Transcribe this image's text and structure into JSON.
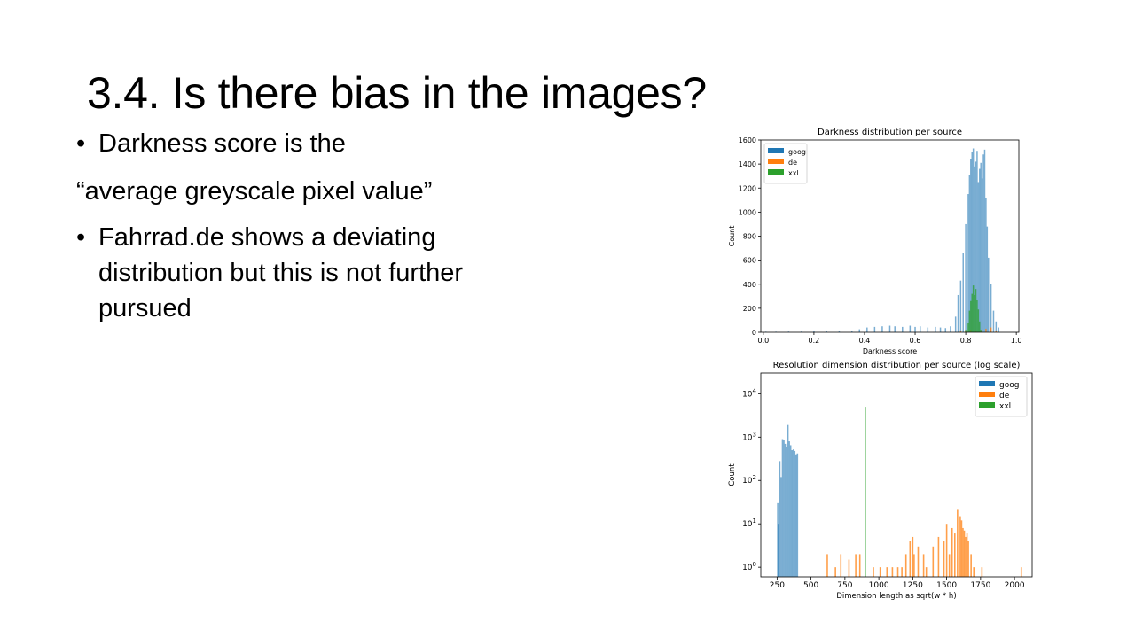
{
  "slide": {
    "title": "3.4. Is there bias in the images?",
    "bullet1": "Darkness score is the",
    "line2": "“average greyscale pixel value”",
    "bullet2_line1": "Fahrrad.de shows a deviating",
    "bullet2_line2": "distribution  but this is not further",
    "bullet2_line3": "pursued"
  },
  "colors": {
    "goog": "#1f77b4",
    "de": "#ff7f0e",
    "xxl": "#2ca02c"
  },
  "chart_data": [
    {
      "type": "bar",
      "title": "Darkness distribution per source",
      "xlabel": "Darkness score",
      "ylabel": "Count",
      "xlim": [
        -0.01,
        1.01
      ],
      "ylim": [
        0,
        1600
      ],
      "xticks": [
        "0.0",
        "0.2",
        "0.4",
        "0.6",
        "0.8",
        "1.0"
      ],
      "yticks": [
        "0",
        "200",
        "400",
        "600",
        "800",
        "1000",
        "1200",
        "1400",
        "1600"
      ],
      "legend_position": "top-left",
      "series": [
        {
          "name": "goog",
          "x": [
            0.01,
            0.05,
            0.1,
            0.15,
            0.2,
            0.25,
            0.3,
            0.35,
            0.38,
            0.41,
            0.44,
            0.47,
            0.5,
            0.52,
            0.55,
            0.58,
            0.6,
            0.62,
            0.65,
            0.68,
            0.7,
            0.72,
            0.74,
            0.76,
            0.77,
            0.78,
            0.79,
            0.8,
            0.81,
            0.815,
            0.82,
            0.825,
            0.83,
            0.835,
            0.84,
            0.845,
            0.85,
            0.855,
            0.86,
            0.865,
            0.87,
            0.875,
            0.88,
            0.885,
            0.89,
            0.9,
            0.91,
            0.92,
            0.93
          ],
          "y": [
            5,
            5,
            6,
            6,
            8,
            8,
            10,
            12,
            25,
            40,
            45,
            50,
            55,
            50,
            45,
            55,
            45,
            50,
            40,
            45,
            40,
            35,
            50,
            130,
            310,
            430,
            660,
            900,
            1150,
            1310,
            1440,
            1500,
            1530,
            1380,
            1420,
            1510,
            1250,
            1360,
            1410,
            1280,
            1480,
            1520,
            1120,
            880,
            620,
            400,
            180,
            90,
            40
          ]
        },
        {
          "name": "de",
          "x": [
            0.78,
            0.8,
            0.82,
            0.84,
            0.86,
            0.88,
            0.9,
            0.92
          ],
          "y": [
            10,
            15,
            20,
            12,
            18,
            30,
            40,
            15
          ]
        },
        {
          "name": "xxl",
          "x": [
            0.8,
            0.81,
            0.815,
            0.82,
            0.825,
            0.83,
            0.835,
            0.84,
            0.845,
            0.85,
            0.855,
            0.86
          ],
          "y": [
            20,
            80,
            180,
            260,
            320,
            390,
            310,
            360,
            270,
            190,
            90,
            20
          ]
        }
      ]
    },
    {
      "type": "bar",
      "title": "Resolution dimension distribution per source (log scale)",
      "xlabel": "Dimension length as sqrt(w * h)",
      "ylabel": "Count",
      "xlim": [
        130,
        2130
      ],
      "ylog": true,
      "ylim": [
        0.6,
        30000
      ],
      "xticks": [
        250,
        500,
        750,
        1000,
        1250,
        1500,
        1750,
        2000
      ],
      "yticks": [
        1,
        10,
        100,
        1000,
        10000
      ],
      "legend_position": "top-right",
      "series": [
        {
          "name": "goog",
          "x": [
            255,
            260,
            270,
            280,
            290,
            300,
            310,
            320,
            330,
            340,
            350,
            360,
            370,
            380,
            390,
            400
          ],
          "y": [
            30,
            10,
            280,
            120,
            900,
            850,
            700,
            600,
            1900,
            800,
            650,
            500,
            520,
            480,
            400,
            420
          ]
        },
        {
          "name": "de",
          "x": [
            620,
            680,
            720,
            780,
            830,
            860,
            960,
            1010,
            1060,
            1100,
            1140,
            1170,
            1200,
            1230,
            1250,
            1260,
            1290,
            1330,
            1350,
            1400,
            1440,
            1480,
            1500,
            1520,
            1540,
            1560,
            1580,
            1600,
            1610,
            1620,
            1630,
            1640,
            1650,
            1660,
            1680,
            1700,
            1760,
            2050
          ],
          "y": [
            2,
            1,
            2,
            1.5,
            2,
            2,
            1,
            1,
            1,
            1,
            1,
            1,
            2,
            4,
            5,
            2,
            3,
            2,
            1,
            3,
            5,
            4,
            10,
            2,
            8,
            6,
            22,
            15,
            12,
            8,
            7,
            5,
            6,
            4,
            2,
            1,
            1,
            1
          ]
        },
        {
          "name": "xxl",
          "x": [
            900
          ],
          "y": [
            5000
          ]
        }
      ]
    }
  ]
}
